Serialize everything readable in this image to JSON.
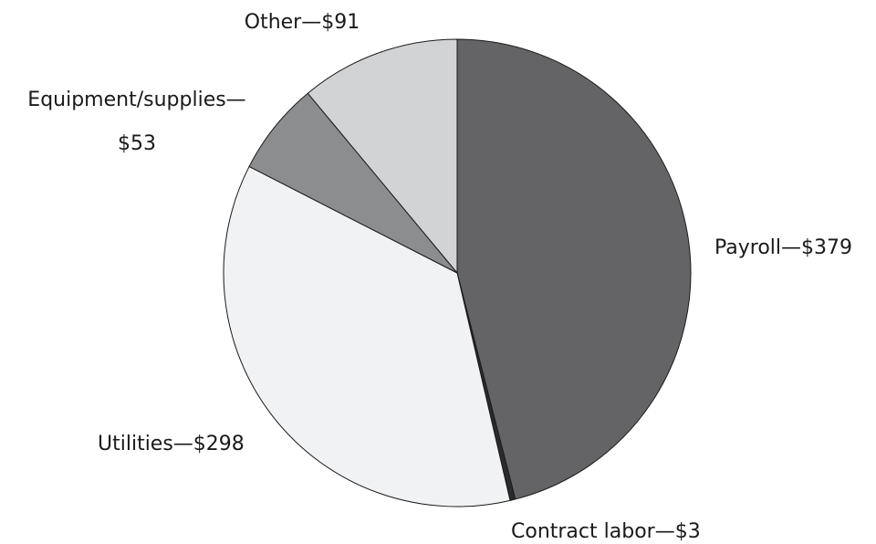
{
  "chart_data": {
    "type": "pie",
    "values": [
      379,
      3,
      298,
      53,
      91
    ],
    "value_labels": [
      [
        "Payroll—$379"
      ],
      [
        "Contract labor—$3"
      ],
      [
        "Utilities—$298"
      ],
      [
        "Equipment/supplies—",
        "$53"
      ],
      [
        "Other—$91"
      ]
    ],
    "colors": [
      "#646466",
      "#2b2b2b",
      "#f1f2f4",
      "#8c8d8f",
      "#d2d3d5"
    ]
  }
}
